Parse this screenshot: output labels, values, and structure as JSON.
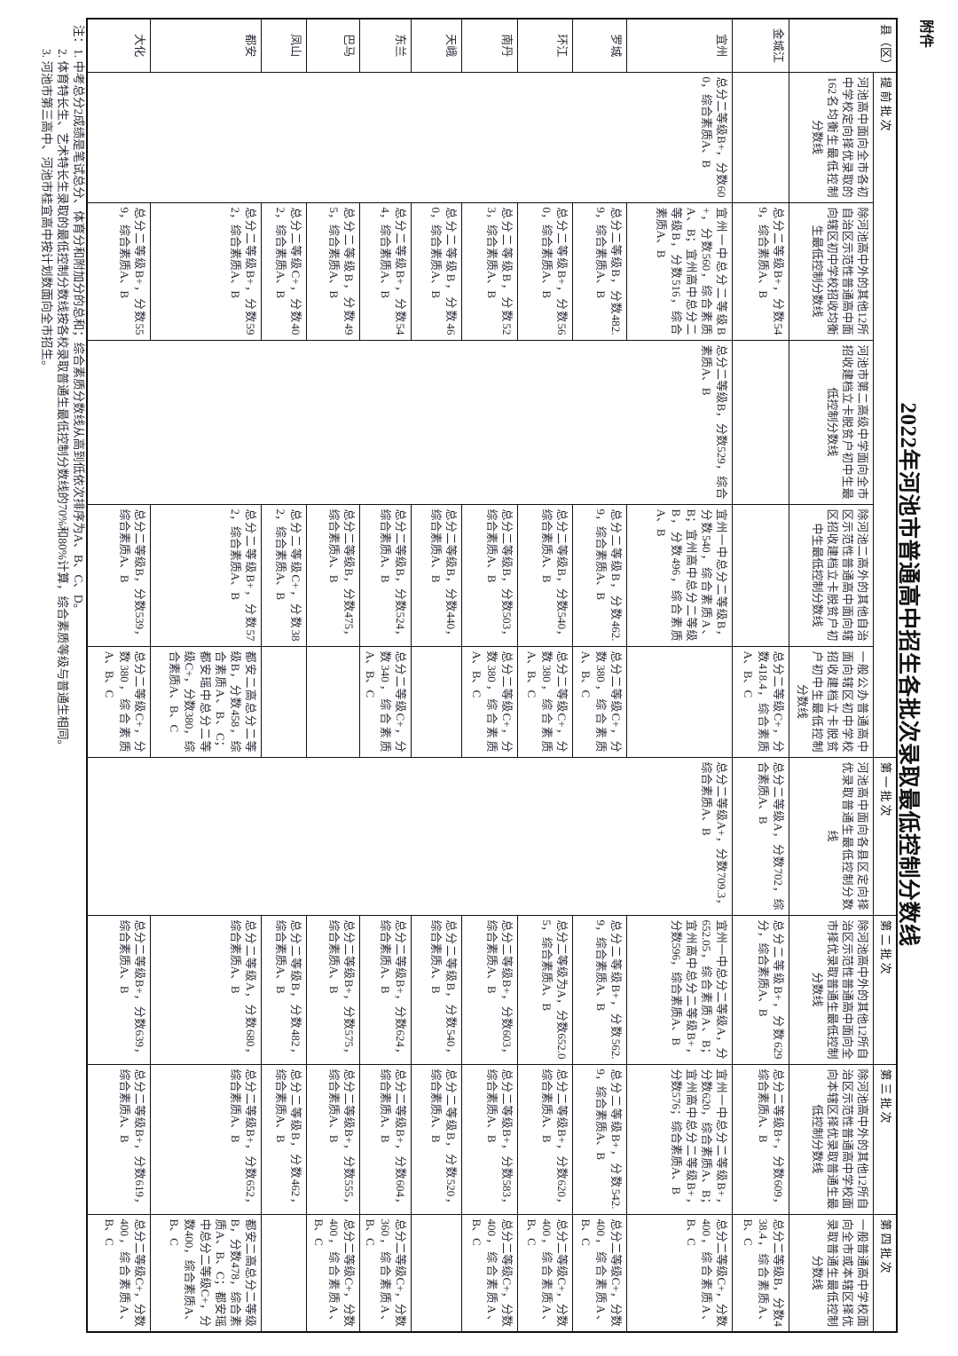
{
  "attachment_label": "附件",
  "title": "2022年河池市普通高中招生各批次录取最低控制分数线",
  "header": {
    "county": "县（区）",
    "groups": [
      "提前批次",
      "第一批次",
      "第二批次",
      "第三批次",
      "第四批次"
    ],
    "subheaders": {
      "a": "河池高中面向全市各初中学校定向择优录取的162名均衡生最低控制分数线",
      "b": "除河池高中外的其他12所自治区示范性普通高中面向辖区初中学校招收均衡生最低控制分数线",
      "c": "河池市第二高级中学面向全市招收建档立卡脱贫户初中生最低控制分数线",
      "d": "除河池二高外的其他自治区示范性普通高中面向辖区招收建档立卡脱贫户初中生最低控制分数线",
      "e": "一般公办普通高中面向辖区初中学校招收建档立卡脱贫户初中生最低控制分数线",
      "f": "河池高中面向各县区定向择优录取普通生最低控制分数线",
      "g": "除河池高中外的其他12所自治区示范性普通高中面向全市择优录取普通生最低控制分数线",
      "h": "除河池高中外的其他12所自治区示范性普通高中学校面向本辖区择优录取普通生最低控制分数线",
      "i": "一般普通高中学校面向全市或本辖区择优录取普通生最低控制分数线"
    }
  },
  "merged": {
    "a": "总分二等级B+，分数600，综合素质A、B",
    "c": "总分二等级B，分数529，综合素质A、B",
    "f": "总分二等级A+，分数709.3，综合素质A、B"
  },
  "rows": [
    {
      "county": "金城江",
      "a": "",
      "b": "总分二等级B+，分数549，综合素质A、B",
      "c": "",
      "d": "",
      "e": "总分二等级C+，分数418.4，综合素质A、B、C",
      "f": "总分二等级A，分数702，综合素质A、B",
      "g": "总分二等级B+，分数629分，综合素质A、B",
      "h": "总分二等级B+，分数609，综合素质A、B",
      "i": "总分二等级B，分数438.4，综合素质A、B、C"
    },
    {
      "county": "宜州",
      "b": "宜州一中总分二等级B+，分数560，综合素质A、B；宜州高中总分二等级B，分数516，综合素质A、B",
      "d": "宜州一中总分二等级B，分数540，综合素质A、B；宜州高中总分二等级B，分数496，综合素质A、B",
      "e": "",
      "g": "宜州一中总分二等级A，分652.05，综合素质A、B；宜州高中总分二等级B+，分数596，综合素质A、B",
      "h": "宜州一中总分二等级B+，分数620，综合素质A、B；宜州高中总分二等级B+，分数576；综合素质A、B",
      "i": "总分二等级C+，分数400，综合素质A、B、C"
    },
    {
      "county": "罗城",
      "b": "总分二等级B，分数482.9，综合素质A、B",
      "d": "总分二等级B，分数462.9，综合素质A、B",
      "e": "总分二等级C+，分数380，综合素质A、B、C",
      "g": "总分二等级B+，分数562.9，综合素质A、B",
      "h": "总分二等级B+，分数542.9，综合素质A、B",
      "i": "总分二等级C+，分数400，综合素质A、B、C"
    },
    {
      "county": "环江",
      "b": "总分二等级B+，分数560，综合素质A、B",
      "d": "总分二等级B，分数540，综合素质A、B",
      "e": "总分二等级C+，分数380，综合素质A、B、C",
      "g": "总分二等级为A，分数652.05，综合素质A、B",
      "h": "总分二等级B+，分数620，综合素质A、B",
      "i": "总分二等级C+，分数400，综合素质A、B、C"
    },
    {
      "county": "南丹",
      "b": "总分二等级B，分数523，综合素质A、B",
      "d": "总分二等级B，分数503，综合素质A、B",
      "e": "总分二等级C+，分数380，综合素质A、B、C",
      "g": "总分二等级B+，分数603，综合素质A、B",
      "h": "总分二等级B+，分数583，综合素质A、B",
      "i": "总分二等级C+，分数400，综合素质A、B、C"
    },
    {
      "county": "天峨",
      "b": "总分二等级B，分数460，综合素质A、B",
      "d": "总分二等级B，分数440，综合素质A、B",
      "e": "",
      "g": "总分二等级B，分数540，综合素质A、B",
      "h": "总分二等级B，分数520，综合素质A、B",
      "i": ""
    },
    {
      "county": "东兰",
      "b": "总分二等级B+，分数544，综合素质A、B",
      "d": "总分二等级B，分数524，综合素质A、B",
      "e": "总分二等级C+，分数340，综合素质A、B、C",
      "g": "总分二等级B+，分数624，综合素质A、B",
      "h": "总分二等级B+，分数604，综合素质A、B",
      "i": "总分二等级C+，分数360，综合素质A、B、C"
    },
    {
      "county": "巴马",
      "b": "总分二等级B，分数495，综合素质A、B",
      "d": "总分二等级B，分数475，综合素质A、B",
      "e": "",
      "g": "总分二等级B+，分数575，综合素质A、B",
      "h": "总分二等级B+，分数555，综合素质A、B",
      "i": "总分二等级C+，分数400，综合素质A、B、C"
    },
    {
      "county": "凤山",
      "b": "总分二等级C+，分数402，综合素质A、B",
      "d": "总分二等级C+，分数382，综合素质A、B",
      "e": "",
      "g": "总分二等级B，分数482，综合素质A、B",
      "h": "总分二等级B，分数462，综合素质A、B",
      "i": ""
    },
    {
      "county": "都安",
      "b": "总分二等级B+，分数592，综合素质A、B",
      "d": "总分二等级B+，分数572，综合素质A、B",
      "e": "都安二高总分二等级B，分数458，综合素质A、B、C；都安瑶中总分二等级C+，分数380，综合素质A、B、C",
      "g": "总分二等级A，分数680，综合素质A、B",
      "h": "总分二等级B+，分数652，综合素质A、B",
      "i": "都安二高总分二等级B，分数478，综合素质A、B、C；都安瑶中总分二等级C+，分数400，综合素质A、B、C"
    },
    {
      "county": "大化",
      "b": "总分二等级B+，分数559，综合素质A、B",
      "d": "总分二等级B，分数539，综合素质A、B",
      "e": "总分二等级C+，分数380，综合素质A、B、C",
      "g": "总分二等级B+，分数639，综合素质A、B",
      "h": "总分二等级B+，分数619，综合素质A、B",
      "i": "总分二等级C+，分数400，综合素质A、B、C"
    }
  ],
  "notes": [
    "注：1. 中考总分2成绩是笔试总分、体育分和附加分的总和；综合素质分数线从高到低依次排序为A、B、C、D。",
    "2. 体育特长生、艺术特长生录取的最低控制分数线按各校录取普通生最低控制分数线的70%和80%计算，综合素质等级与普通生相同。",
    "3. 河池市第三高中、河池市桂宜高中按计划数面向全市招生。"
  ]
}
